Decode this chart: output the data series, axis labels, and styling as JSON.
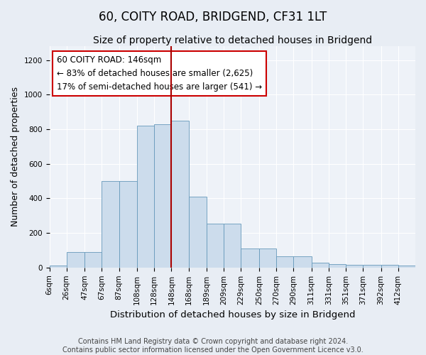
{
  "title": "60, COITY ROAD, BRIDGEND, CF31 1LT",
  "subtitle": "Size of property relative to detached houses in Bridgend",
  "xlabel": "Distribution of detached houses by size in Bridgend",
  "ylabel": "Number of detached properties",
  "bar_labels": [
    "6sqm",
    "26sqm",
    "47sqm",
    "67sqm",
    "87sqm",
    "108sqm",
    "128sqm",
    "148sqm",
    "168sqm",
    "189sqm",
    "209sqm",
    "229sqm",
    "250sqm",
    "270sqm",
    "290sqm",
    "311sqm",
    "331sqm",
    "351sqm",
    "371sqm",
    "392sqm",
    "412sqm"
  ],
  "bar_values": [
    10,
    90,
    90,
    500,
    500,
    820,
    830,
    850,
    410,
    255,
    255,
    110,
    110,
    65,
    65,
    30,
    20,
    15,
    15,
    15,
    10
  ],
  "bar_color": "#ccdcec",
  "bar_edge_color": "#6699bb",
  "vline_x": 148,
  "vline_color": "#aa0000",
  "annotation_text": "60 COITY ROAD: 146sqm\n← 83% of detached houses are smaller (2,625)\n17% of semi-detached houses are larger (541) →",
  "annotation_box_color": "#ffffff",
  "annotation_box_edge": "#cc0000",
  "ylim": [
    0,
    1280
  ],
  "footnote": "Contains HM Land Registry data © Crown copyright and database right 2024.\nContains public sector information licensed under the Open Government Licence v3.0.",
  "title_fontsize": 12,
  "subtitle_fontsize": 10,
  "xlabel_fontsize": 9.5,
  "ylabel_fontsize": 9,
  "tick_fontsize": 7.5,
  "annotation_fontsize": 8.5,
  "footnote_fontsize": 7,
  "background_color": "#e8edf4",
  "plot_background": "#eef2f8"
}
